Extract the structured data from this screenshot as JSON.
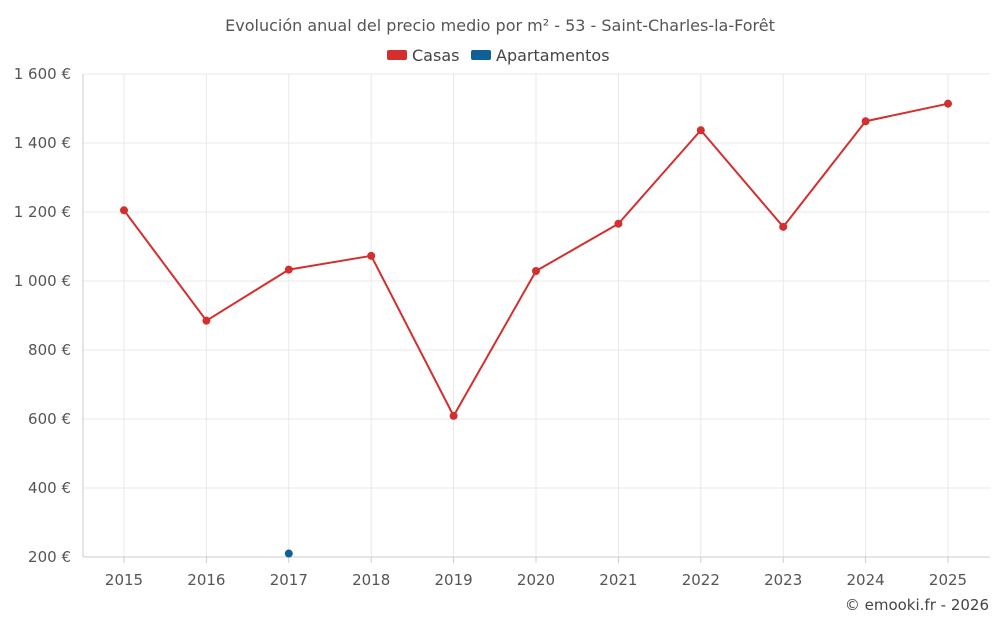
{
  "chart_data": {
    "type": "line",
    "title": "Evolución anual del precio medio por m² - 53 - Saint-Charles-la-Forêt",
    "x": [
      "2015",
      "2016",
      "2017",
      "2018",
      "2019",
      "2020",
      "2021",
      "2022",
      "2023",
      "2024",
      "2025"
    ],
    "y_ticks": [
      200,
      400,
      600,
      800,
      1000,
      1200,
      1400,
      1600
    ],
    "y_tick_labels": [
      "200 €",
      "400 €",
      "600 €",
      "800 €",
      "1 000 €",
      "1 200 €",
      "1 400 €",
      "1 600 €"
    ],
    "ylim": [
      200,
      1600
    ],
    "grid": true,
    "legend_position": "top-center",
    "series": [
      {
        "name": "Casas",
        "color": "#d32f2f",
        "values": [
          1205,
          885,
          1033,
          1073,
          609,
          1029,
          1166,
          1437,
          1157,
          1463,
          1514
        ]
      },
      {
        "name": "Apartamentos",
        "color": "#0d6196",
        "values": [
          null,
          null,
          210,
          null,
          null,
          null,
          null,
          null,
          null,
          null,
          null
        ]
      }
    ]
  },
  "credit": "© emooki.fr - 2026"
}
